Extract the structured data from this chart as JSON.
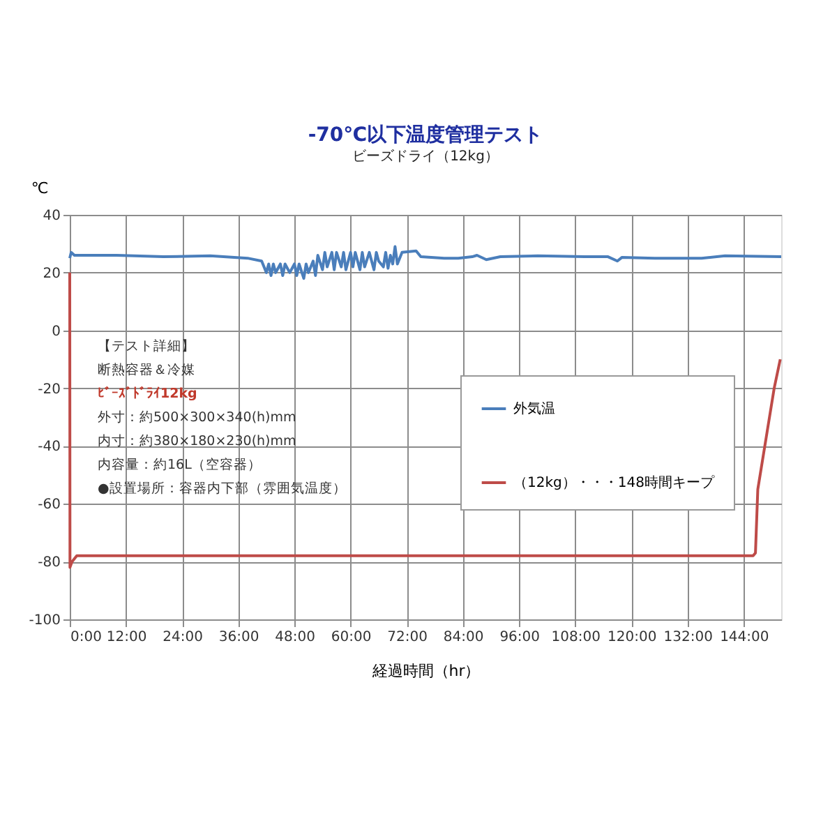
{
  "chart_data": {
    "type": "line",
    "title": "-70℃以下温度管理テスト",
    "subtitle": "ビーズドライ（12kg）",
    "xlabel": "経過時間（hr）",
    "ylabel": "℃",
    "xlim": [
      0,
      152
    ],
    "ylim": [
      -100,
      40
    ],
    "xticks": [
      {
        "value": 0,
        "label": "0:00"
      },
      {
        "value": 12,
        "label": "12:00"
      },
      {
        "value": 24,
        "label": "24:00"
      },
      {
        "value": 36,
        "label": "36:00"
      },
      {
        "value": 48,
        "label": "48:00"
      },
      {
        "value": 60,
        "label": "60:00"
      },
      {
        "value": 72,
        "label": "72:00"
      },
      {
        "value": 84,
        "label": "84:00"
      },
      {
        "value": 96,
        "label": "96:00"
      },
      {
        "value": 108,
        "label": "108:00"
      },
      {
        "value": 120,
        "label": "120:00"
      },
      {
        "value": 132,
        "label": "132:00"
      },
      {
        "value": 144,
        "label": "144:00"
      }
    ],
    "yticks": [
      -100,
      -80,
      -60,
      -40,
      -20,
      0,
      20,
      40
    ],
    "grid": true,
    "legend": "right",
    "marker": "none",
    "line_style": "solid",
    "series": [
      {
        "name": "外気温",
        "color": "#4a7ebb",
        "x": [
          0,
          0.3,
          1,
          10,
          20,
          30,
          38,
          41,
          42,
          42.5,
          43,
          43.5,
          44,
          45,
          45.5,
          46,
          47,
          48,
          48.5,
          49,
          50,
          50.5,
          51,
          52,
          52.5,
          53,
          54,
          54.5,
          55,
          56,
          56.5,
          57,
          58,
          58.5,
          59,
          60,
          60.5,
          61,
          62,
          62.5,
          63,
          64,
          65,
          65.5,
          66,
          67,
          67.5,
          68,
          68.5,
          69,
          69.5,
          70,
          71,
          74,
          75,
          80,
          83,
          86,
          87,
          89,
          92,
          100,
          110,
          115,
          117,
          118,
          125,
          135,
          140,
          152
        ],
        "values": [
          25,
          27,
          26,
          26,
          25.5,
          25.8,
          25,
          24,
          20,
          23,
          19,
          23,
          20,
          23,
          19,
          23,
          20,
          23,
          19,
          23,
          18,
          23,
          20,
          24,
          19,
          26,
          21,
          27,
          22,
          27,
          21,
          27,
          22,
          27,
          21,
          27,
          22,
          27,
          21,
          27,
          22,
          27,
          21,
          27,
          24,
          22,
          27,
          21.5,
          26,
          23,
          29,
          23,
          27,
          27.5,
          25.5,
          25,
          25,
          25.5,
          26,
          24.5,
          25.5,
          25.8,
          25.5,
          25.5,
          24,
          25.3,
          25,
          25,
          25.8,
          25.5
        ]
      },
      {
        "name": "（12kg）・・・148時間キープ",
        "color": "#be4b48",
        "x": [
          0,
          0.05,
          0.5,
          1.5,
          146,
          146.5,
          147,
          148,
          149,
          150.5,
          151.8
        ],
        "values": [
          20,
          -82,
          -80,
          -78,
          -78,
          -77,
          -55,
          -45,
          -35,
          -20,
          -10
        ]
      }
    ],
    "annotations": [
      "【テスト詳細】",
      "断熱容器＆冷媒",
      "ﾋﾞｰｽﾞﾄﾞﾗｲ12kg",
      "外寸：約500×300×340(h)mm",
      "内寸：約380×180×230(h)mm",
      "内容量：約16L（空容器）",
      "●設置場所：容器内下部（雰囲気温度）"
    ]
  }
}
